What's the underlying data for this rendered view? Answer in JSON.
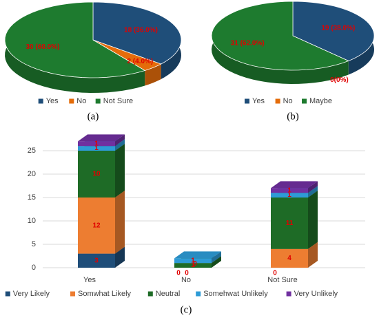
{
  "chart_data": [
    {
      "type": "pie",
      "caption": "(a)",
      "categories": [
        "Yes",
        "No",
        "Not Sure"
      ],
      "values": [
        18,
        2,
        30
      ],
      "value_labels": [
        "18 (36.0%)",
        "2 (4.0%)",
        "30 (60.0%)"
      ],
      "colors": [
        "#1f4e79",
        "#e46c0a",
        "#1e7b2f"
      ]
    },
    {
      "type": "pie",
      "caption": "(b)",
      "categories": [
        "Yes",
        "No",
        "Maybe"
      ],
      "values": [
        19,
        0,
        31
      ],
      "value_labels": [
        "19 (38.0%)",
        "0(0%)",
        "31 (62.0%)"
      ],
      "colors": [
        "#1f4e79",
        "#e46c0a",
        "#1e7b2f"
      ]
    },
    {
      "type": "bar",
      "caption": "(c)",
      "stacked": true,
      "categories": [
        "Yes",
        "No",
        "Not Sure"
      ],
      "series": [
        {
          "name": "Very Likely",
          "color": "#1f4e79",
          "values": [
            3,
            0,
            0
          ]
        },
        {
          "name": "Somwhat Likely",
          "color": "#ed7d31",
          "values": [
            12,
            0,
            4
          ]
        },
        {
          "name": "Neutral",
          "color": "#1e6b26",
          "values": [
            10,
            1,
            11
          ]
        },
        {
          "name": "Somehwat Unlikely",
          "color": "#2e9bd6",
          "values": [
            1,
            1,
            1
          ]
        },
        {
          "name": "Very Unlikely",
          "color": "#7030a0",
          "values": [
            1,
            0,
            1
          ]
        }
      ],
      "ylim": [
        0,
        30
      ],
      "yticks": [
        0,
        5,
        10,
        15,
        20,
        25
      ],
      "grid": true
    }
  ]
}
